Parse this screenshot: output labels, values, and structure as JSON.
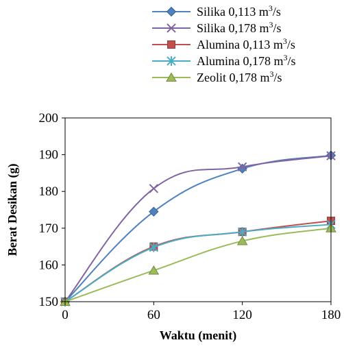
{
  "chart_data": {
    "type": "line",
    "title": "",
    "xlabel": "Waktu (menit)",
    "ylabel": "Berat  Desikan (g)",
    "x": [
      0,
      60,
      120,
      180
    ],
    "x_ticks": [
      "0",
      "60",
      "120",
      "180"
    ],
    "xlim": [
      0,
      180
    ],
    "y_ticks": [
      "150",
      "160",
      "170",
      "180",
      "190",
      "200"
    ],
    "ylim": [
      150,
      200
    ],
    "grid": false,
    "legend_position": "top",
    "series": [
      {
        "name": "Silika  0,113 m",
        "unit_sup": "3",
        "unit_tail": "/s",
        "marker": "diamond",
        "color": "#4F81BD",
        "values": [
          150,
          174.5,
          186.2,
          189.8
        ]
      },
      {
        "name": "Silika  0,178 m",
        "unit_sup": "3",
        "unit_tail": "/s",
        "marker": "x",
        "color": "#8064A2",
        "values": [
          150,
          180.8,
          186.7,
          189.7
        ]
      },
      {
        "name": "Alumina 0,113 m",
        "unit_sup": "3",
        "unit_tail": "/s",
        "marker": "square",
        "color": "#C0504D",
        "values": [
          150,
          165,
          169,
          172
        ]
      },
      {
        "name": "Alumina 0,178 m",
        "unit_sup": "3",
        "unit_tail": "/s",
        "marker": "asterisk",
        "color": "#4BACC6",
        "values": [
          150,
          164.8,
          169,
          171
        ]
      },
      {
        "name": "Zeolit 0,178 m",
        "unit_sup": "3",
        "unit_tail": "/s",
        "marker": "triangle",
        "color": "#9BBB59",
        "values": [
          150,
          158.5,
          166.5,
          170
        ]
      }
    ]
  }
}
